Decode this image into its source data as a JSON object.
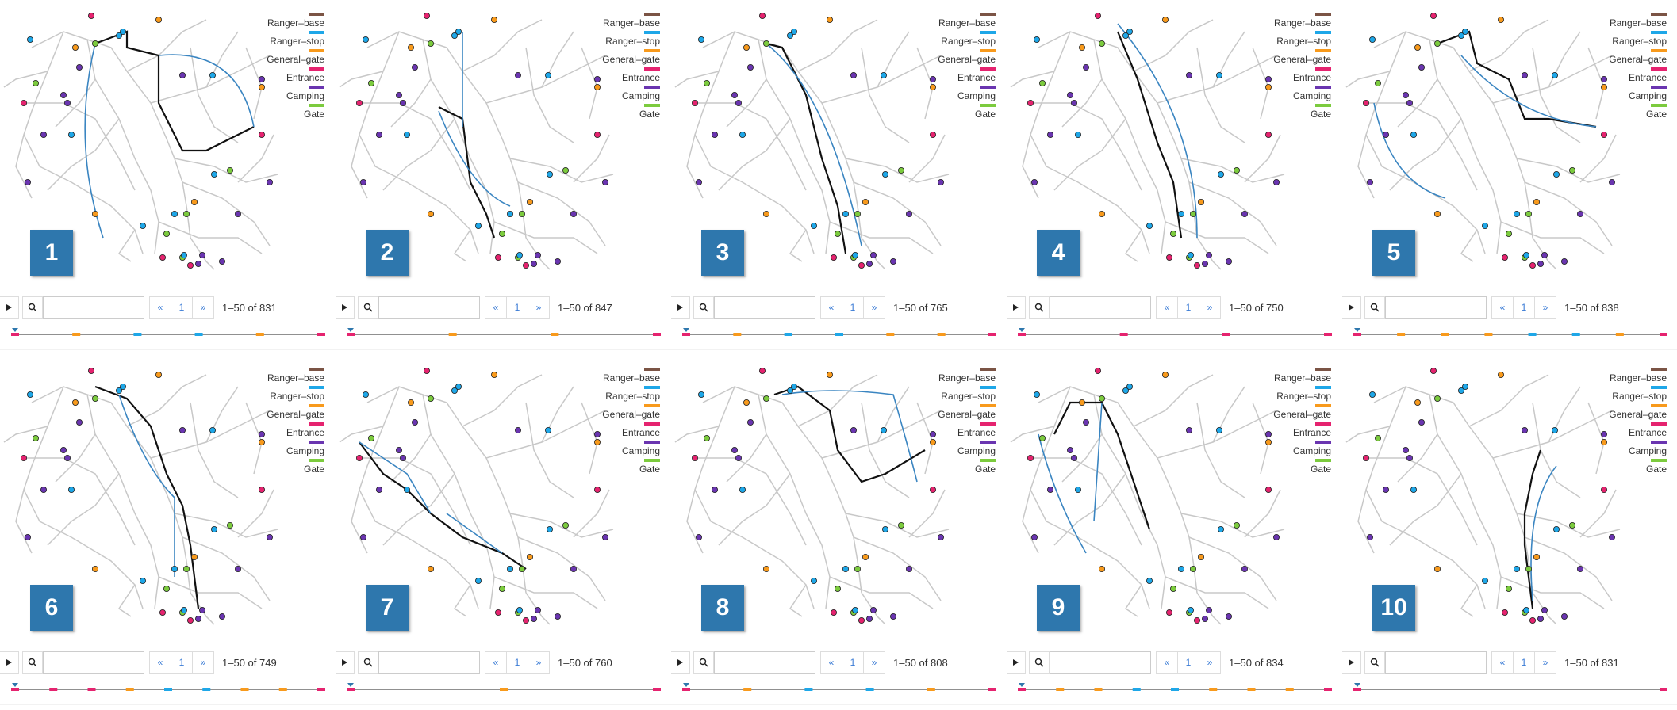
{
  "legend": [
    {
      "label": "Ranger–base",
      "color": "#7b5445"
    },
    {
      "label": "Ranger–stop",
      "color": "#1ea7e8"
    },
    {
      "label": "General–gate",
      "color": "#f89a1c"
    },
    {
      "label": "Entrance",
      "color": "#e5236f"
    },
    {
      "label": "Camping",
      "color": "#6a35b0"
    },
    {
      "label": "Gate",
      "color": "#7ccb3e"
    }
  ],
  "colors": {
    "badge": "#2e77ad",
    "route": "#3a85c1",
    "trajectory": "#111111",
    "roads": "#c8c8c8"
  },
  "icons": {
    "play": "play-icon",
    "search": "search-icon",
    "prev": "chevron-left-double-icon",
    "next": "chevron-right-double-icon",
    "marker": "triangle-marker-icon"
  },
  "panels": [
    {
      "number": "1",
      "count": "1–50 of 831",
      "page": "1",
      "prev": "«",
      "next": "»",
      "timeline": [
        "Entrance",
        "General–gate",
        "Ranger–stop",
        "Ranger–stop",
        "General–gate",
        "Entrance"
      ]
    },
    {
      "number": "2",
      "count": "1–50 of 847",
      "page": "1",
      "prev": "«",
      "next": "»",
      "timeline": [
        "Entrance",
        "General–gate",
        "General–gate",
        "Entrance"
      ]
    },
    {
      "number": "3",
      "count": "1–50 of 765",
      "page": "1",
      "prev": "«",
      "next": "»",
      "timeline": [
        "Entrance",
        "General–gate",
        "Ranger–stop",
        "Ranger–stop",
        "General–gate",
        "General–gate",
        "Entrance"
      ]
    },
    {
      "number": "4",
      "count": "1–50 of 750",
      "page": "1",
      "prev": "«",
      "next": "»",
      "timeline": [
        "Entrance",
        "Entrance",
        "Entrance",
        "Entrance"
      ]
    },
    {
      "number": "5",
      "count": "1–50 of 838",
      "page": "1",
      "prev": "«",
      "next": "»",
      "timeline": [
        "Entrance",
        "General–gate",
        "General–gate",
        "General–gate",
        "Ranger–stop",
        "Ranger–stop",
        "General–gate",
        "Entrance"
      ]
    },
    {
      "number": "6",
      "count": "1–50 of 749",
      "page": "1",
      "prev": "«",
      "next": "»",
      "timeline": [
        "Entrance",
        "Entrance",
        "Entrance",
        "General–gate",
        "Ranger–stop",
        "Ranger–stop",
        "General–gate",
        "General–gate",
        "Entrance"
      ]
    },
    {
      "number": "7",
      "count": "1–50 of 760",
      "page": "1",
      "prev": "«",
      "next": "»",
      "timeline": [
        "Entrance",
        "General–gate",
        "Entrance"
      ]
    },
    {
      "number": "8",
      "count": "1–50 of 808",
      "page": "1",
      "prev": "«",
      "next": "»",
      "timeline": [
        "Entrance",
        "General–gate",
        "Ranger–stop",
        "Ranger–stop",
        "General–gate",
        "Entrance"
      ]
    },
    {
      "number": "9",
      "count": "1–50 of 834",
      "page": "1",
      "prev": "«",
      "next": "»",
      "timeline": [
        "Entrance",
        "General–gate",
        "General–gate",
        "Ranger–stop",
        "Ranger–stop",
        "General–gate",
        "General–gate",
        "General–gate",
        "Entrance"
      ]
    },
    {
      "number": "10",
      "count": "1–50 of 831",
      "page": "1",
      "prev": "«",
      "next": "»",
      "timeline": [
        "Entrance",
        "Entrance"
      ]
    }
  ]
}
